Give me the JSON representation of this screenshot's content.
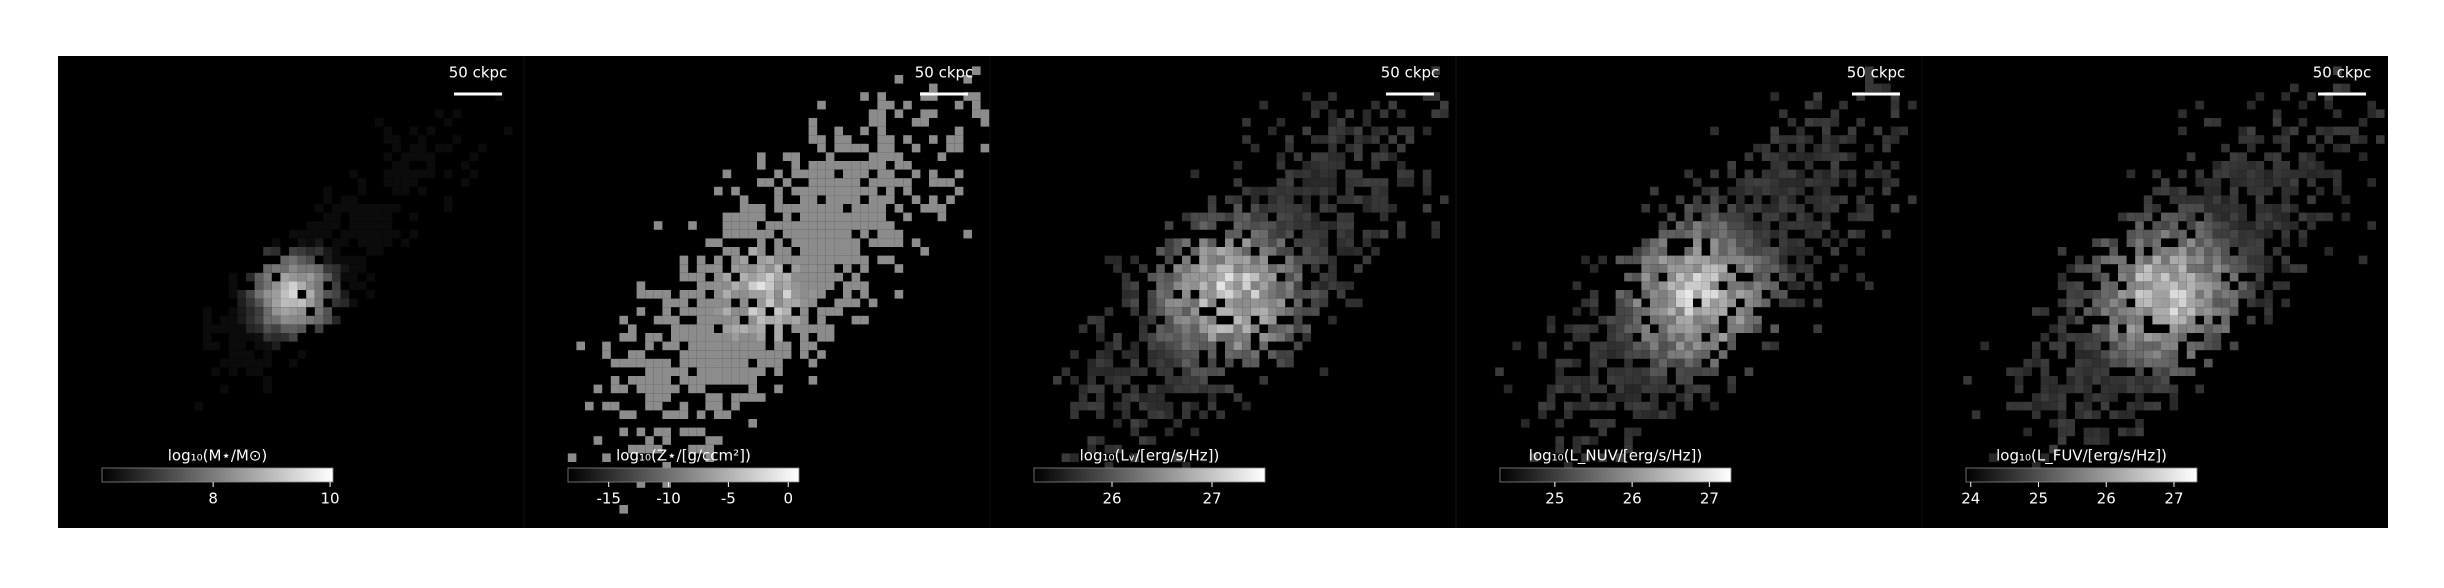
{
  "panels": [
    {
      "scale_label": "50 ckpc",
      "colorbar": {
        "label": "log₁₀(M⋆/M⊙)",
        "lim": [
          6.1,
          10.05
        ],
        "ticks": [
          8,
          10
        ]
      }
    },
    {
      "scale_label": "50 ckpc",
      "colorbar": {
        "label": "log₁₀(Z⋆/[g/ccm²])",
        "lim": [
          -18.4,
          0.9
        ],
        "ticks": [
          -15,
          -10,
          -5,
          0
        ]
      }
    },
    {
      "scale_label": "50 ckpc",
      "colorbar": {
        "label": "log₁₀(Lᵥ/[erg/s/Hz])",
        "lim": [
          25.22,
          27.53
        ],
        "ticks": [
          26,
          27
        ]
      }
    },
    {
      "scale_label": "50 ckpc",
      "colorbar": {
        "label": "log₁₀(L_NUV/[erg/s/Hz])",
        "lim": [
          24.29,
          27.28
        ],
        "ticks": [
          25,
          26,
          27
        ]
      }
    },
    {
      "scale_label": "50 ckpc",
      "colorbar": {
        "label": "log₁₀(L_FUV/[erg/s/Hz])",
        "lim": [
          23.93,
          27.34
        ],
        "ticks": [
          24,
          25,
          26,
          27
        ]
      }
    }
  ]
}
